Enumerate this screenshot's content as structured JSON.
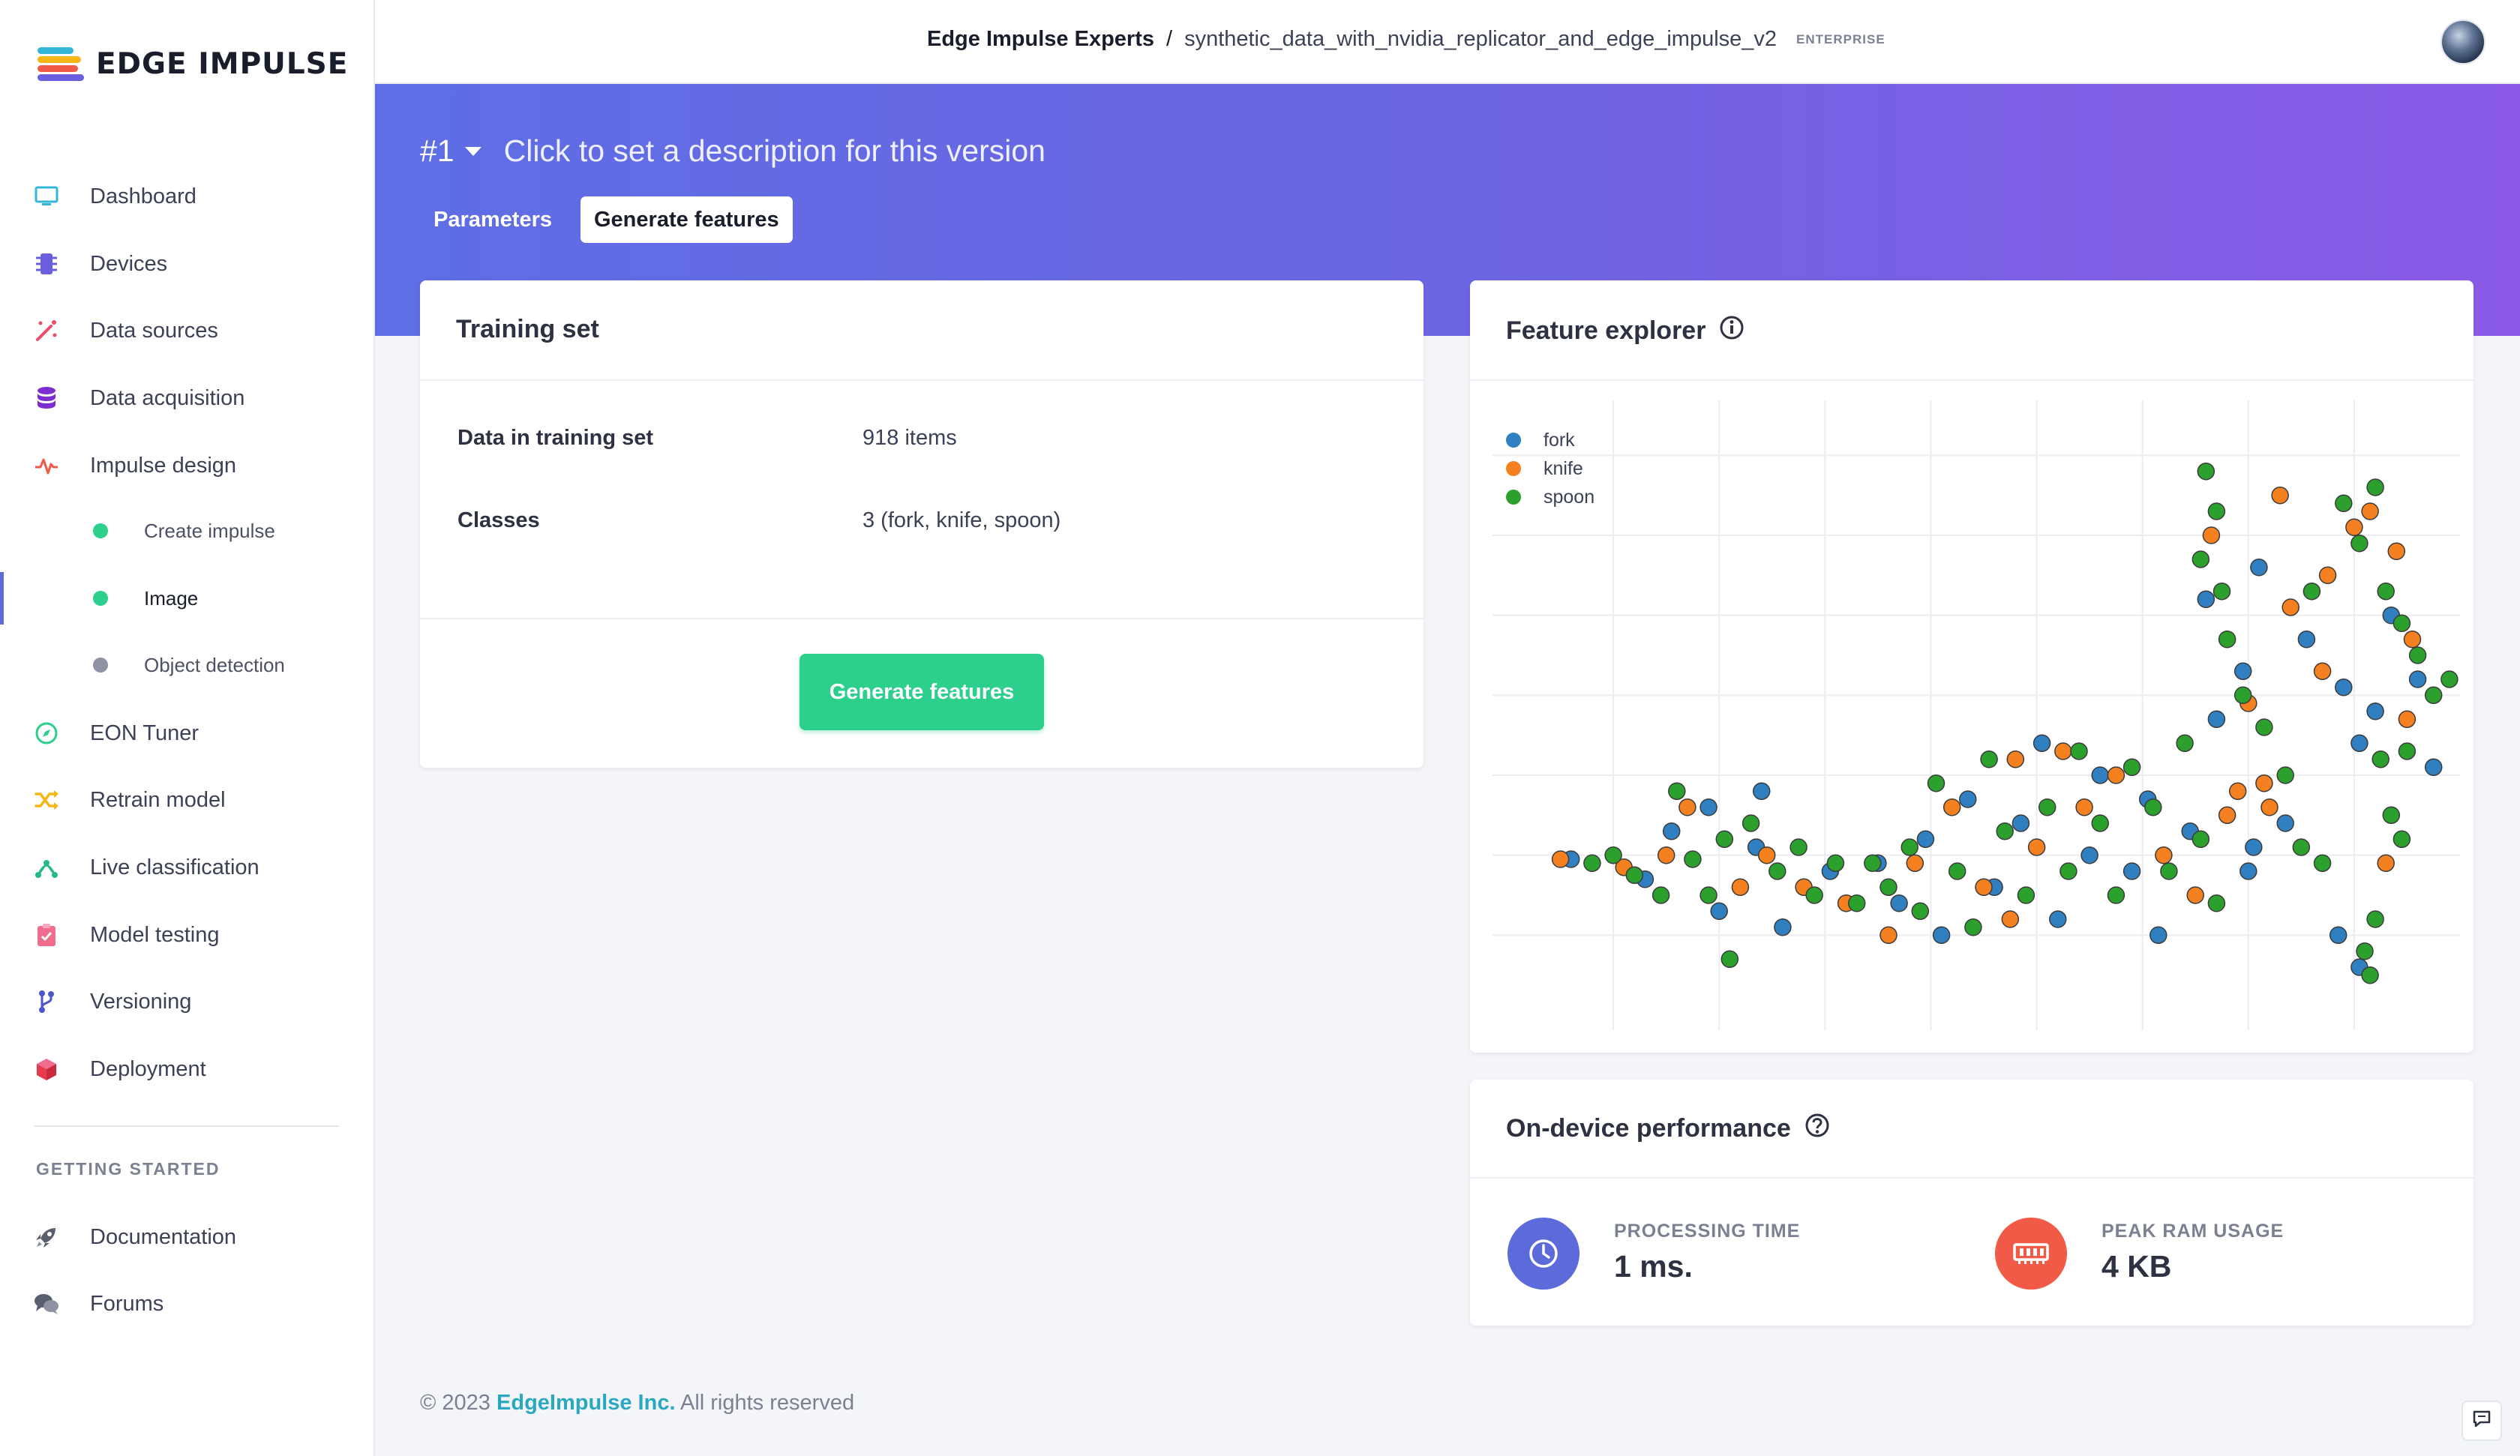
{
  "brand": {
    "name": "EDGE IMPULSE"
  },
  "sidebar": {
    "items": [
      {
        "label": "Dashboard",
        "icon": "monitor-icon",
        "color": "#34b6d8"
      },
      {
        "label": "Devices",
        "icon": "chip-icon",
        "color": "#6b5fe0"
      },
      {
        "label": "Data sources",
        "icon": "magic-wand-icon",
        "color": "#ef4b6a"
      },
      {
        "label": "Data acquisition",
        "icon": "database-icon",
        "color": "#7b2fd1"
      },
      {
        "label": "Impulse design",
        "icon": "pulse-icon",
        "color": "#f25a48"
      },
      {
        "label": "EON Tuner",
        "icon": "compass-icon",
        "color": "#2dcf8c"
      },
      {
        "label": "Retrain model",
        "icon": "shuffle-icon",
        "color": "#f6b716"
      },
      {
        "label": "Live classification",
        "icon": "network-icon",
        "color": "#24b88c"
      },
      {
        "label": "Model testing",
        "icon": "clipboard-check-icon",
        "color": "#f06d8e"
      },
      {
        "label": "Versioning",
        "icon": "branch-icon",
        "color": "#4b57c9"
      },
      {
        "label": "Deployment",
        "icon": "cube-icon",
        "color": "#e83a4f"
      }
    ],
    "subitems": [
      {
        "label": "Create impulse",
        "dot_color": "#2dcf8c"
      },
      {
        "label": "Image",
        "dot_color": "#2dcf8c"
      },
      {
        "label": "Object detection",
        "dot_color": "#8e93a3"
      }
    ],
    "getting_started": {
      "heading": "GETTING STARTED",
      "items": [
        {
          "label": "Documentation",
          "icon": "rocket-icon"
        },
        {
          "label": "Forums",
          "icon": "chat-bubbles-icon"
        }
      ]
    }
  },
  "header": {
    "org": "Edge Impulse Experts",
    "separator": "/",
    "project": "synthetic_data_with_nvidia_replicator_and_edge_impulse_v2",
    "badge": "ENTERPRISE"
  },
  "version": {
    "number": "#1",
    "description": "Click to set a description for this version"
  },
  "tabs": [
    {
      "label": "Parameters",
      "active": false
    },
    {
      "label": "Generate features",
      "active": true
    }
  ],
  "training_set": {
    "title": "Training set",
    "rows": [
      {
        "label": "Data in training set",
        "value": "918 items"
      },
      {
        "label": "Classes",
        "value": "3 (fork, knife, spoon)"
      }
    ],
    "button_label": "Generate features"
  },
  "feature_explorer": {
    "title": "Feature explorer",
    "info_icon": "info-circle-icon"
  },
  "performance": {
    "title": "On-device performance",
    "help_icon": "question-circle-icon",
    "metrics": [
      {
        "label": "PROCESSING TIME",
        "value": "1 ms.",
        "icon": "clock-icon",
        "color": "#5c6bd9"
      },
      {
        "label": "PEAK RAM USAGE",
        "value": "4 KB",
        "icon": "memory-icon",
        "color": "#f25a48"
      }
    ]
  },
  "footer": {
    "copyright": "© 2023",
    "company": "EdgeImpulse Inc.",
    "rights": "All rights reserved"
  },
  "chart_data": {
    "type": "scatter",
    "title": "",
    "xlabel": "",
    "ylabel": "",
    "grid": true,
    "legend_position": "top-left",
    "xlim": [
      0,
      9
    ],
    "ylim": [
      0,
      7.5
    ],
    "series": [
      {
        "name": "fork",
        "color": "#2f7fc1",
        "points": [
          [
            0.6,
            1.95
          ],
          [
            1.3,
            1.7
          ],
          [
            1.55,
            2.3
          ],
          [
            1.9,
            2.6
          ],
          [
            2.0,
            1.3
          ],
          [
            2.35,
            2.1
          ],
          [
            2.6,
            1.1
          ],
          [
            2.4,
            2.8
          ],
          [
            3.05,
            1.8
          ],
          [
            3.5,
            1.9
          ],
          [
            3.7,
            1.4
          ],
          [
            3.95,
            2.2
          ],
          [
            4.1,
            1.0
          ],
          [
            4.35,
            2.7
          ],
          [
            4.6,
            1.6
          ],
          [
            4.85,
            2.4
          ],
          [
            5.05,
            3.4
          ],
          [
            5.2,
            1.2
          ],
          [
            5.5,
            2.0
          ],
          [
            5.6,
            3.0
          ],
          [
            5.9,
            1.8
          ],
          [
            6.05,
            2.7
          ],
          [
            6.15,
            1.0
          ],
          [
            6.45,
            2.3
          ],
          [
            6.6,
            5.2
          ],
          [
            6.7,
            3.7
          ],
          [
            6.95,
            4.3
          ],
          [
            7.0,
            1.8
          ],
          [
            7.05,
            2.1
          ],
          [
            7.1,
            5.6
          ],
          [
            7.35,
            2.4
          ],
          [
            7.55,
            4.7
          ],
          [
            7.85,
            1.0
          ],
          [
            7.9,
            4.1
          ],
          [
            8.05,
            3.4
          ],
          [
            8.2,
            3.8
          ],
          [
            8.35,
            5.0
          ],
          [
            8.6,
            4.2
          ],
          [
            8.75,
            3.1
          ],
          [
            8.05,
            0.6
          ]
        ]
      },
      {
        "name": "knife",
        "color": "#f4801f",
        "points": [
          [
            0.5,
            1.95
          ],
          [
            1.1,
            1.85
          ],
          [
            1.5,
            2.0
          ],
          [
            1.7,
            2.6
          ],
          [
            2.2,
            1.6
          ],
          [
            2.45,
            2.0
          ],
          [
            2.8,
            1.6
          ],
          [
            3.2,
            1.4
          ],
          [
            3.6,
            1.0
          ],
          [
            3.85,
            1.9
          ],
          [
            4.2,
            2.6
          ],
          [
            4.5,
            1.6
          ],
          [
            4.75,
            1.2
          ],
          [
            4.8,
            3.2
          ],
          [
            5.0,
            2.1
          ],
          [
            5.25,
            3.3
          ],
          [
            5.45,
            2.6
          ],
          [
            5.75,
            3.0
          ],
          [
            6.2,
            2.0
          ],
          [
            6.5,
            1.5
          ],
          [
            6.65,
            6.0
          ],
          [
            6.8,
            2.5
          ],
          [
            7.0,
            3.9
          ],
          [
            7.2,
            2.6
          ],
          [
            7.3,
            6.5
          ],
          [
            7.4,
            5.1
          ],
          [
            7.7,
            4.3
          ],
          [
            7.75,
            5.5
          ],
          [
            8.0,
            6.1
          ],
          [
            8.15,
            6.3
          ],
          [
            8.4,
            5.8
          ],
          [
            8.55,
            4.7
          ],
          [
            8.5,
            3.7
          ],
          [
            8.3,
            1.9
          ],
          [
            6.9,
            2.8
          ],
          [
            7.15,
            2.9
          ]
        ]
      },
      {
        "name": "spoon",
        "color": "#2ca02c",
        "points": [
          [
            0.8,
            1.9
          ],
          [
            1.0,
            2.0
          ],
          [
            1.2,
            1.75
          ],
          [
            1.45,
            1.5
          ],
          [
            1.6,
            2.8
          ],
          [
            1.75,
            1.95
          ],
          [
            1.9,
            1.5
          ],
          [
            2.05,
            2.2
          ],
          [
            2.1,
            0.7
          ],
          [
            2.3,
            2.4
          ],
          [
            2.55,
            1.8
          ],
          [
            2.75,
            2.1
          ],
          [
            2.9,
            1.5
          ],
          [
            3.1,
            1.9
          ],
          [
            3.3,
            1.4
          ],
          [
            3.45,
            1.9
          ],
          [
            3.6,
            1.6
          ],
          [
            3.8,
            2.1
          ],
          [
            3.9,
            1.3
          ],
          [
            4.05,
            2.9
          ],
          [
            4.25,
            1.8
          ],
          [
            4.4,
            1.1
          ],
          [
            4.55,
            3.2
          ],
          [
            4.7,
            2.3
          ],
          [
            4.9,
            1.5
          ],
          [
            5.1,
            2.6
          ],
          [
            5.3,
            1.8
          ],
          [
            5.4,
            3.3
          ],
          [
            5.6,
            2.4
          ],
          [
            5.75,
            1.5
          ],
          [
            5.9,
            3.1
          ],
          [
            6.1,
            2.6
          ],
          [
            6.25,
            1.8
          ],
          [
            6.4,
            3.4
          ],
          [
            6.55,
            2.2
          ],
          [
            6.7,
            1.4
          ],
          [
            6.6,
            6.8
          ],
          [
            6.7,
            6.3
          ],
          [
            6.55,
            5.7
          ],
          [
            6.75,
            5.3
          ],
          [
            6.8,
            4.7
          ],
          [
            6.95,
            4.0
          ],
          [
            7.15,
            3.6
          ],
          [
            7.35,
            3.0
          ],
          [
            7.5,
            2.1
          ],
          [
            7.7,
            1.9
          ],
          [
            7.6,
            5.3
          ],
          [
            7.9,
            6.4
          ],
          [
            8.05,
            5.9
          ],
          [
            8.2,
            6.6
          ],
          [
            8.3,
            5.3
          ],
          [
            8.45,
            4.9
          ],
          [
            8.6,
            4.5
          ],
          [
            8.75,
            4.0
          ],
          [
            8.9,
            4.2
          ],
          [
            8.5,
            3.3
          ],
          [
            8.25,
            3.2
          ],
          [
            8.35,
            2.5
          ],
          [
            8.45,
            2.2
          ],
          [
            8.2,
            1.2
          ],
          [
            8.1,
            0.8
          ],
          [
            8.15,
            0.5
          ]
        ]
      }
    ]
  }
}
